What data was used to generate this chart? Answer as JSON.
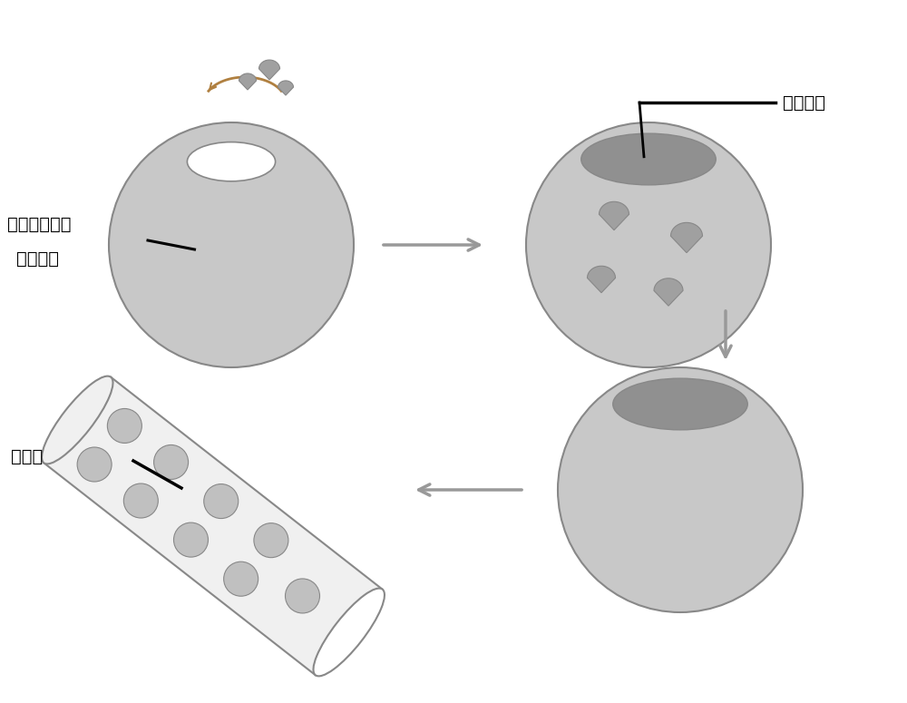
{
  "bg_color": "#ffffff",
  "sphere_color": "#c8c8c8",
  "sphere_edge_color": "#888888",
  "dark_cap_color": "#909090",
  "hollow_color": "#ffffff",
  "drop_color": "#a0a0a0",
  "arrow_color": "#999999",
  "tube_color": "#f0f0f0",
  "tube_edge_color": "#888888",
  "ball_color": "#c0c0c0",
  "label_color": "#000000",
  "curved_arrow_color": "#b08040",
  "labels": {
    "phase_material": "相变材料",
    "graphene_far_infrared": "石墨烯远红外",
    "hollow_sphere": "空心微球",
    "polymer": "聚合物"
  }
}
